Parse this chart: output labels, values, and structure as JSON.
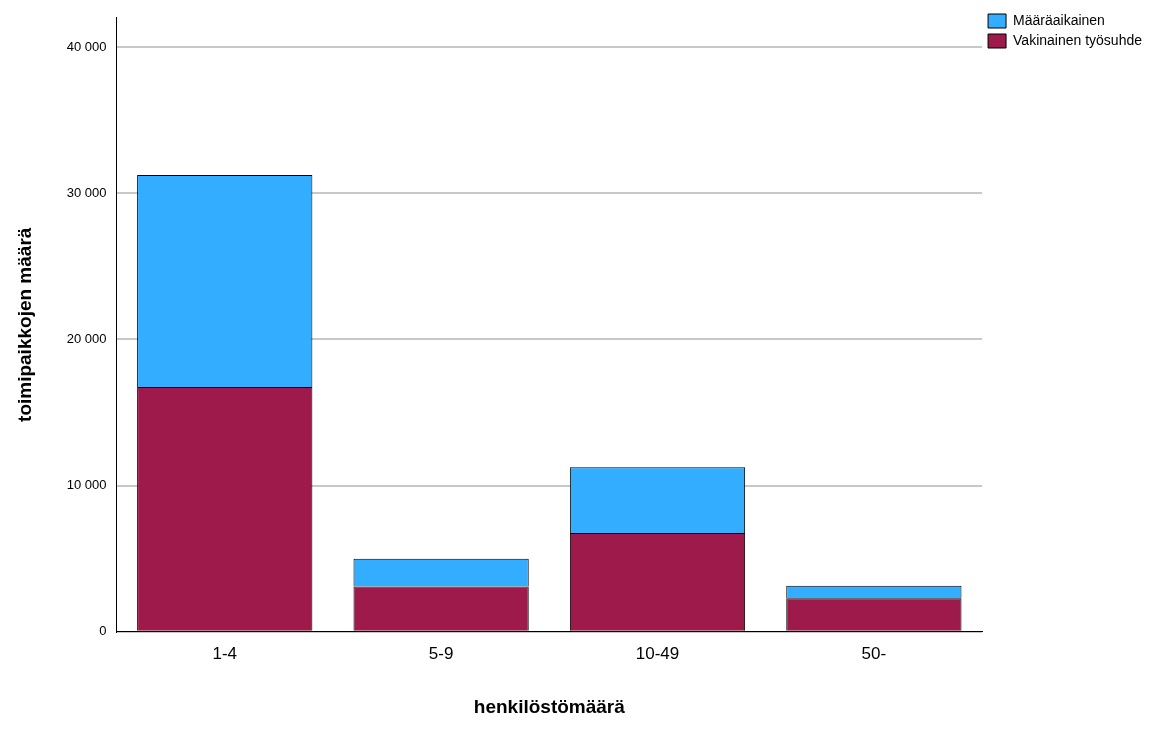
{
  "chart_data": {
    "type": "bar",
    "stacked": true,
    "xlabel": "henkilöstömäärä",
    "ylabel": "toimipaikkojen määrä",
    "categories": [
      "1-4",
      "5-9",
      "10-49",
      "50-"
    ],
    "series": [
      {
        "name": "Vakinainen työsuhde",
        "color": "#9e1a4b",
        "values": [
          16750,
          3100,
          6750,
          2300
        ]
      },
      {
        "name": "Määräaikainen",
        "color": "#33adff",
        "values": [
          14500,
          1900,
          4500,
          850
        ]
      }
    ],
    "ylim": [
      0,
      42000
    ],
    "yticks": [
      {
        "value": 0,
        "label": "0"
      },
      {
        "value": 10000,
        "label": "10 000"
      },
      {
        "value": 20000,
        "label": "20 000"
      },
      {
        "value": 30000,
        "label": "30 000"
      },
      {
        "value": 40000,
        "label": "40 000"
      }
    ],
    "grid": "y",
    "legend": "top right"
  }
}
